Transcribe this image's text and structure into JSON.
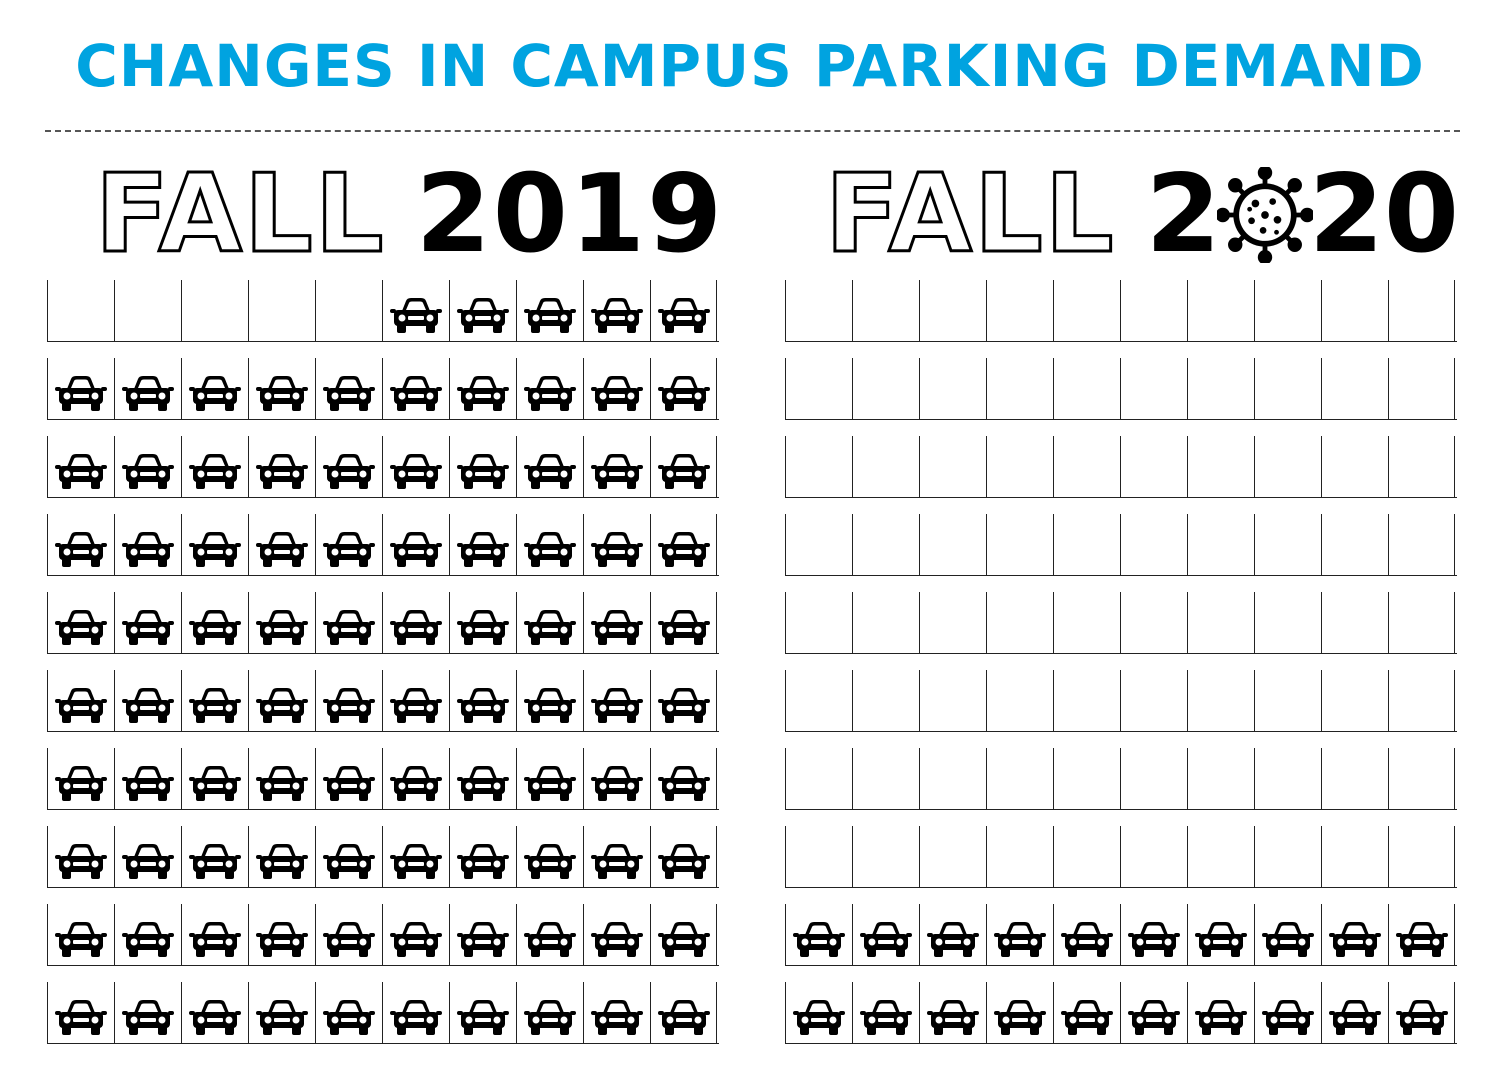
{
  "title": "CHANGES IN CAMPUS PARKING DEMAND",
  "colors": {
    "title": "#00a3e0",
    "ink": "#000000"
  },
  "panels": [
    {
      "fall_label": "FALL",
      "year_label": "2019",
      "rows": 10,
      "spaces_per_row": 10,
      "occupied": [
        [
          0,
          0,
          0,
          0,
          0,
          1,
          1,
          1,
          1,
          1
        ],
        [
          1,
          1,
          1,
          1,
          1,
          1,
          1,
          1,
          1,
          1
        ],
        [
          1,
          1,
          1,
          1,
          1,
          1,
          1,
          1,
          1,
          1
        ],
        [
          1,
          1,
          1,
          1,
          1,
          1,
          1,
          1,
          1,
          1
        ],
        [
          1,
          1,
          1,
          1,
          1,
          1,
          1,
          1,
          1,
          1
        ],
        [
          1,
          1,
          1,
          1,
          1,
          1,
          1,
          1,
          1,
          1
        ],
        [
          1,
          1,
          1,
          1,
          1,
          1,
          1,
          1,
          1,
          1
        ],
        [
          1,
          1,
          1,
          1,
          1,
          1,
          1,
          1,
          1,
          1
        ],
        [
          1,
          1,
          1,
          1,
          1,
          1,
          1,
          1,
          1,
          1
        ],
        [
          1,
          1,
          1,
          1,
          1,
          1,
          1,
          1,
          1,
          1
        ]
      ]
    },
    {
      "fall_label": "FALL",
      "year_prefix": "2",
      "year_suffix": "20",
      "year_icon": "virus-icon",
      "rows": 10,
      "spaces_per_row": 10,
      "occupied": [
        [
          0,
          0,
          0,
          0,
          0,
          0,
          0,
          0,
          0,
          0
        ],
        [
          0,
          0,
          0,
          0,
          0,
          0,
          0,
          0,
          0,
          0
        ],
        [
          0,
          0,
          0,
          0,
          0,
          0,
          0,
          0,
          0,
          0
        ],
        [
          0,
          0,
          0,
          0,
          0,
          0,
          0,
          0,
          0,
          0
        ],
        [
          0,
          0,
          0,
          0,
          0,
          0,
          0,
          0,
          0,
          0
        ],
        [
          0,
          0,
          0,
          0,
          0,
          0,
          0,
          0,
          0,
          0
        ],
        [
          0,
          0,
          0,
          0,
          0,
          0,
          0,
          0,
          0,
          0
        ],
        [
          0,
          0,
          0,
          0,
          0,
          0,
          0,
          0,
          0,
          0
        ],
        [
          1,
          1,
          1,
          1,
          1,
          1,
          1,
          1,
          1,
          1
        ],
        [
          1,
          1,
          1,
          1,
          1,
          1,
          1,
          1,
          1,
          1
        ]
      ]
    }
  ],
  "icons": {
    "occupied_space": "car-icon"
  }
}
